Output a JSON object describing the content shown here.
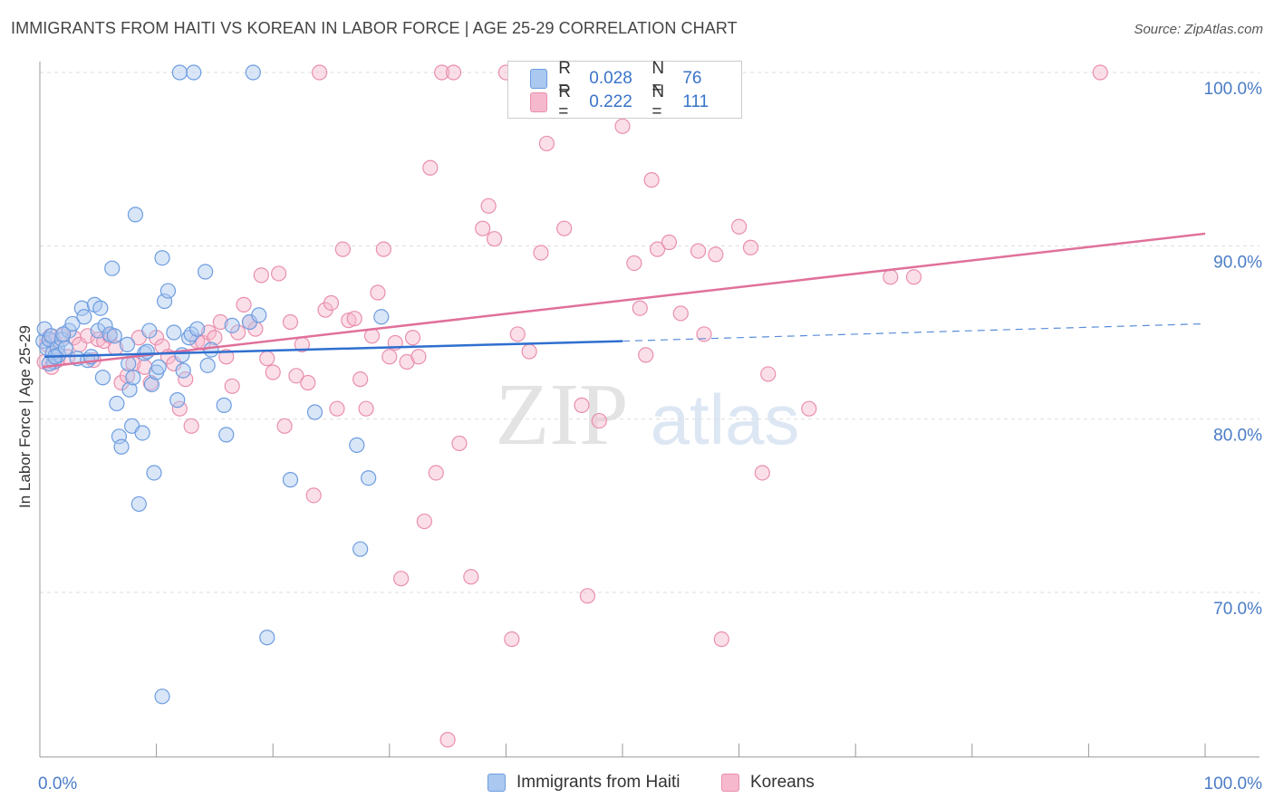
{
  "header": {
    "title": "IMMIGRANTS FROM HAITI VS KOREAN IN LABOR FORCE | AGE 25-29 CORRELATION CHART",
    "source": "Source: ZipAtlas.com"
  },
  "watermark": {
    "zip": "ZIP",
    "atlas": "atlas"
  },
  "legend_top": {
    "rows": [
      {
        "r_label": "R =",
        "r_value": "0.028",
        "n_label": "N =",
        "n_value": "76"
      },
      {
        "r_label": "R =",
        "r_value": "0.222",
        "n_label": "N =",
        "n_value": "111"
      }
    ]
  },
  "legend_bottom": {
    "haiti": "Immigrants from Haiti",
    "koreans": "Koreans"
  },
  "colors": {
    "haiti_fill": "#aac8f0",
    "haiti_stroke": "#6d9de0",
    "haiti_line": "#2f6fcf",
    "korean_fill": "#f6b8cc",
    "korean_stroke": "#e98fae",
    "korean_line": "#e0709a",
    "axis_label": "#4a7cc7",
    "grid": "#dddddd"
  },
  "chart_data": {
    "type": "scatter",
    "title": "IMMIGRANTS FROM HAITI VS KOREAN IN LABOR FORCE | AGE 25-29 CORRELATION CHART",
    "xlabel": "",
    "ylabel": "In Labor Force | Age 25-29",
    "xlim": [
      0,
      100
    ],
    "ylim": [
      60.5,
      101.5
    ],
    "x_tick_labels": [
      "0.0%",
      "100.0%"
    ],
    "y_ticks": [
      70,
      80,
      90,
      100
    ],
    "y_tick_labels": [
      "70.0%",
      "80.0%",
      "90.0%",
      "100.0%"
    ],
    "grid": true,
    "legend_position": "top-center",
    "series": [
      {
        "name": "Immigrants from Haiti",
        "r": 0.028,
        "n": 76,
        "trend": {
          "x0": 0.4,
          "y0": 83.6,
          "x1": 50,
          "y1": 84.5,
          "dashed_to_x": 100,
          "dashed_to_y": 85.5
        },
        "points": [
          [
            0.3,
            84.5
          ],
          [
            0.4,
            85.2
          ],
          [
            0.6,
            84.1
          ],
          [
            0.8,
            84.6
          ],
          [
            1.0,
            84.8
          ],
          [
            1.1,
            83.8
          ],
          [
            1.2,
            83.3
          ],
          [
            1.5,
            84.1
          ],
          [
            1.6,
            83.7
          ],
          [
            1.9,
            84.6
          ],
          [
            2.2,
            84.1
          ],
          [
            2.5,
            85.1
          ],
          [
            2.8,
            85.5
          ],
          [
            3.2,
            83.5
          ],
          [
            3.6,
            86.4
          ],
          [
            3.8,
            85.9
          ],
          [
            4.1,
            83.4
          ],
          [
            4.4,
            83.6
          ],
          [
            4.7,
            86.6
          ],
          [
            5.0,
            85.1
          ],
          [
            5.4,
            82.4
          ],
          [
            5.6,
            85.4
          ],
          [
            6.0,
            84.9
          ],
          [
            6.2,
            88.7
          ],
          [
            6.4,
            84.8
          ],
          [
            6.6,
            80.9
          ],
          [
            6.8,
            79.0
          ],
          [
            7.0,
            78.4
          ],
          [
            7.5,
            84.3
          ],
          [
            7.6,
            83.2
          ],
          [
            7.7,
            81.7
          ],
          [
            7.9,
            79.6
          ],
          [
            8.0,
            82.4
          ],
          [
            8.2,
            91.8
          ],
          [
            8.5,
            75.1
          ],
          [
            8.8,
            79.2
          ],
          [
            9.0,
            83.8
          ],
          [
            9.2,
            83.9
          ],
          [
            9.4,
            85.1
          ],
          [
            9.6,
            82.0
          ],
          [
            9.8,
            76.9
          ],
          [
            10.0,
            82.7
          ],
          [
            10.2,
            83.0
          ],
          [
            10.5,
            89.3
          ],
          [
            10.7,
            86.8
          ],
          [
            11.0,
            87.4
          ],
          [
            11.5,
            85.0
          ],
          [
            11.8,
            81.1
          ],
          [
            12.0,
            100.0
          ],
          [
            12.3,
            82.8
          ],
          [
            12.8,
            84.7
          ],
          [
            13.0,
            84.9
          ],
          [
            13.2,
            100.0
          ],
          [
            13.5,
            85.2
          ],
          [
            14.2,
            88.5
          ],
          [
            14.4,
            83.1
          ],
          [
            14.7,
            84.0
          ],
          [
            15.8,
            80.8
          ],
          [
            16.0,
            79.1
          ],
          [
            16.5,
            85.4
          ],
          [
            18.0,
            85.6
          ],
          [
            18.3,
            100.0
          ],
          [
            18.8,
            86.0
          ],
          [
            19.5,
            67.4
          ],
          [
            21.5,
            76.5
          ],
          [
            23.6,
            80.4
          ],
          [
            27.2,
            78.5
          ],
          [
            27.5,
            72.5
          ],
          [
            28.2,
            76.6
          ],
          [
            29.3,
            85.9
          ],
          [
            10.5,
            64.0
          ],
          [
            5.2,
            86.4
          ],
          [
            2.0,
            84.9
          ],
          [
            0.8,
            83.2
          ],
          [
            1.3,
            83.6
          ],
          [
            12.2,
            83.7
          ]
        ]
      },
      {
        "name": "Koreans",
        "r": 0.222,
        "n": 111,
        "trend": {
          "x0": 0.2,
          "y0": 83.0,
          "x1": 100,
          "y1": 90.7
        },
        "points": [
          [
            0.4,
            83.3
          ],
          [
            0.6,
            84.3
          ],
          [
            0.9,
            84.8
          ],
          [
            1.2,
            84.5
          ],
          [
            1.5,
            83.4
          ],
          [
            1.9,
            84.8
          ],
          [
            2.4,
            83.6
          ],
          [
            2.9,
            84.7
          ],
          [
            3.4,
            84.3
          ],
          [
            4.1,
            84.8
          ],
          [
            4.6,
            83.4
          ],
          [
            5.0,
            84.6
          ],
          [
            5.5,
            84.5
          ],
          [
            6.0,
            84.8
          ],
          [
            6.5,
            84.1
          ],
          [
            7.0,
            82.1
          ],
          [
            7.5,
            82.5
          ],
          [
            8.0,
            83.2
          ],
          [
            8.5,
            84.7
          ],
          [
            9.0,
            83.0
          ],
          [
            9.5,
            82.1
          ],
          [
            10.0,
            84.7
          ],
          [
            10.5,
            84.2
          ],
          [
            11.0,
            83.6
          ],
          [
            11.5,
            83.2
          ],
          [
            12.0,
            80.6
          ],
          [
            12.5,
            82.3
          ],
          [
            13.0,
            79.6
          ],
          [
            13.5,
            84.5
          ],
          [
            14.0,
            84.4
          ],
          [
            14.5,
            85.0
          ],
          [
            15.0,
            84.7
          ],
          [
            15.5,
            85.6
          ],
          [
            16.0,
            83.6
          ],
          [
            16.5,
            81.9
          ],
          [
            17.0,
            85.0
          ],
          [
            17.5,
            86.6
          ],
          [
            18.0,
            85.6
          ],
          [
            18.5,
            85.2
          ],
          [
            19.0,
            88.3
          ],
          [
            19.5,
            83.5
          ],
          [
            20.0,
            82.7
          ],
          [
            20.5,
            88.4
          ],
          [
            21.0,
            79.6
          ],
          [
            21.5,
            85.6
          ],
          [
            22.0,
            82.5
          ],
          [
            22.5,
            84.3
          ],
          [
            23.0,
            82.1
          ],
          [
            23.5,
            75.6
          ],
          [
            24.0,
            100.0
          ],
          [
            24.5,
            86.3
          ],
          [
            25.0,
            86.7
          ],
          [
            25.5,
            80.6
          ],
          [
            26.0,
            89.8
          ],
          [
            26.5,
            85.7
          ],
          [
            27.0,
            85.8
          ],
          [
            27.5,
            82.3
          ],
          [
            28.0,
            80.6
          ],
          [
            28.5,
            84.8
          ],
          [
            29.0,
            87.3
          ],
          [
            29.5,
            89.8
          ],
          [
            30.0,
            83.6
          ],
          [
            30.5,
            84.4
          ],
          [
            31.0,
            70.8
          ],
          [
            31.5,
            83.3
          ],
          [
            32.0,
            84.7
          ],
          [
            32.5,
            83.6
          ],
          [
            33.0,
            74.1
          ],
          [
            33.5,
            94.5
          ],
          [
            34.0,
            76.9
          ],
          [
            34.5,
            100.0
          ],
          [
            35.5,
            100.0
          ],
          [
            36.0,
            78.6
          ],
          [
            37.0,
            70.9
          ],
          [
            38.0,
            91.0
          ],
          [
            38.5,
            92.3
          ],
          [
            39.0,
            90.4
          ],
          [
            40.0,
            100.0
          ],
          [
            40.5,
            67.3
          ],
          [
            41.0,
            84.9
          ],
          [
            41.5,
            100.0
          ],
          [
            42.0,
            83.9
          ],
          [
            43.0,
            89.6
          ],
          [
            43.5,
            95.9
          ],
          [
            45.0,
            91.0
          ],
          [
            46.5,
            80.8
          ],
          [
            47.0,
            69.8
          ],
          [
            48.0,
            79.9
          ],
          [
            49.0,
            100.0
          ],
          [
            50.0,
            96.9
          ],
          [
            51.0,
            89.0
          ],
          [
            51.5,
            86.4
          ],
          [
            52.0,
            83.7
          ],
          [
            52.5,
            93.8
          ],
          [
            53.0,
            89.8
          ],
          [
            54.0,
            90.2
          ],
          [
            54.5,
            100.0
          ],
          [
            55.0,
            86.1
          ],
          [
            56.5,
            89.7
          ],
          [
            57.0,
            84.9
          ],
          [
            58.0,
            89.5
          ],
          [
            58.5,
            67.3
          ],
          [
            59.0,
            100.0
          ],
          [
            60.0,
            91.1
          ],
          [
            61.0,
            89.9
          ],
          [
            62.0,
            76.9
          ],
          [
            62.5,
            82.6
          ],
          [
            66.0,
            80.6
          ],
          [
            73.0,
            88.2
          ],
          [
            75.0,
            88.2
          ],
          [
            91.0,
            100.0
          ],
          [
            35.0,
            61.5
          ],
          [
            1.0,
            83.0
          ]
        ]
      }
    ]
  }
}
